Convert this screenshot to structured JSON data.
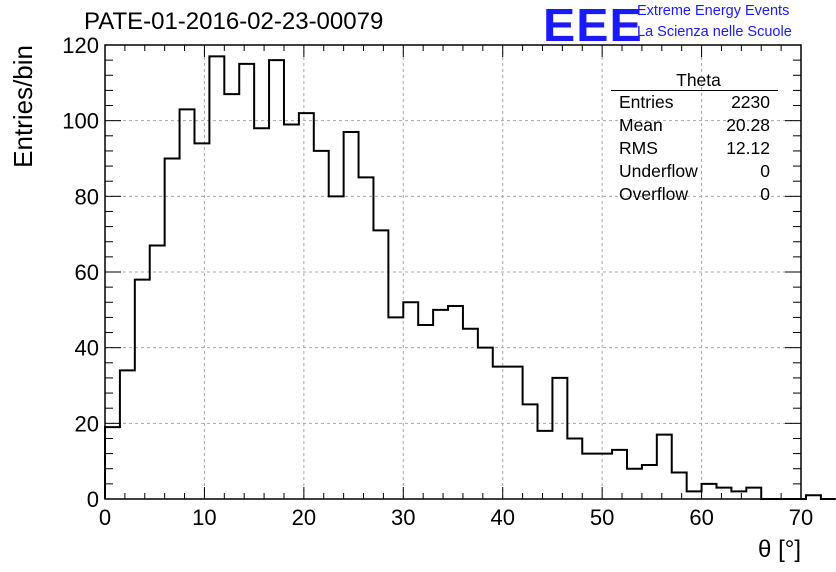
{
  "title": "PATE-01-2016-02-23-00079",
  "logo": {
    "mark": "EEE",
    "line1": "Extreme Energy Events",
    "line2": "La Scienza nelle Scuole"
  },
  "stats": {
    "title": "Theta",
    "rows": [
      {
        "label": "Entries",
        "value": "2230"
      },
      {
        "label": "Mean",
        "value": "20.28"
      },
      {
        "label": "RMS",
        "value": "12.12"
      },
      {
        "label": "Underflow",
        "value": "0"
      },
      {
        "label": "Overflow",
        "value": "0"
      }
    ]
  },
  "chart_data": {
    "type": "histogram",
    "title": "PATE-01-2016-02-23-00079",
    "xlabel": "θ [°]",
    "ylabel": "Entries/bin",
    "xlim": [
      0,
      70
    ],
    "ylim": [
      0,
      120
    ],
    "xticks": [
      0,
      10,
      20,
      30,
      40,
      50,
      60,
      70
    ],
    "yticks": [
      0,
      20,
      40,
      60,
      80,
      100,
      120
    ],
    "grid": true,
    "legend": "top-right",
    "bin_width": 1.5,
    "bin_edges_start": 0,
    "values": [
      19,
      34,
      58,
      67,
      90,
      103,
      94,
      117,
      107,
      115,
      98,
      116,
      99,
      102,
      92,
      80,
      97,
      85,
      71,
      48,
      52,
      46,
      50,
      51,
      45,
      40,
      35,
      35,
      25,
      18,
      32,
      16,
      12,
      12,
      13,
      8,
      9,
      17,
      7,
      2,
      4,
      3,
      2,
      3,
      0,
      0,
      0,
      1,
      0
    ]
  }
}
